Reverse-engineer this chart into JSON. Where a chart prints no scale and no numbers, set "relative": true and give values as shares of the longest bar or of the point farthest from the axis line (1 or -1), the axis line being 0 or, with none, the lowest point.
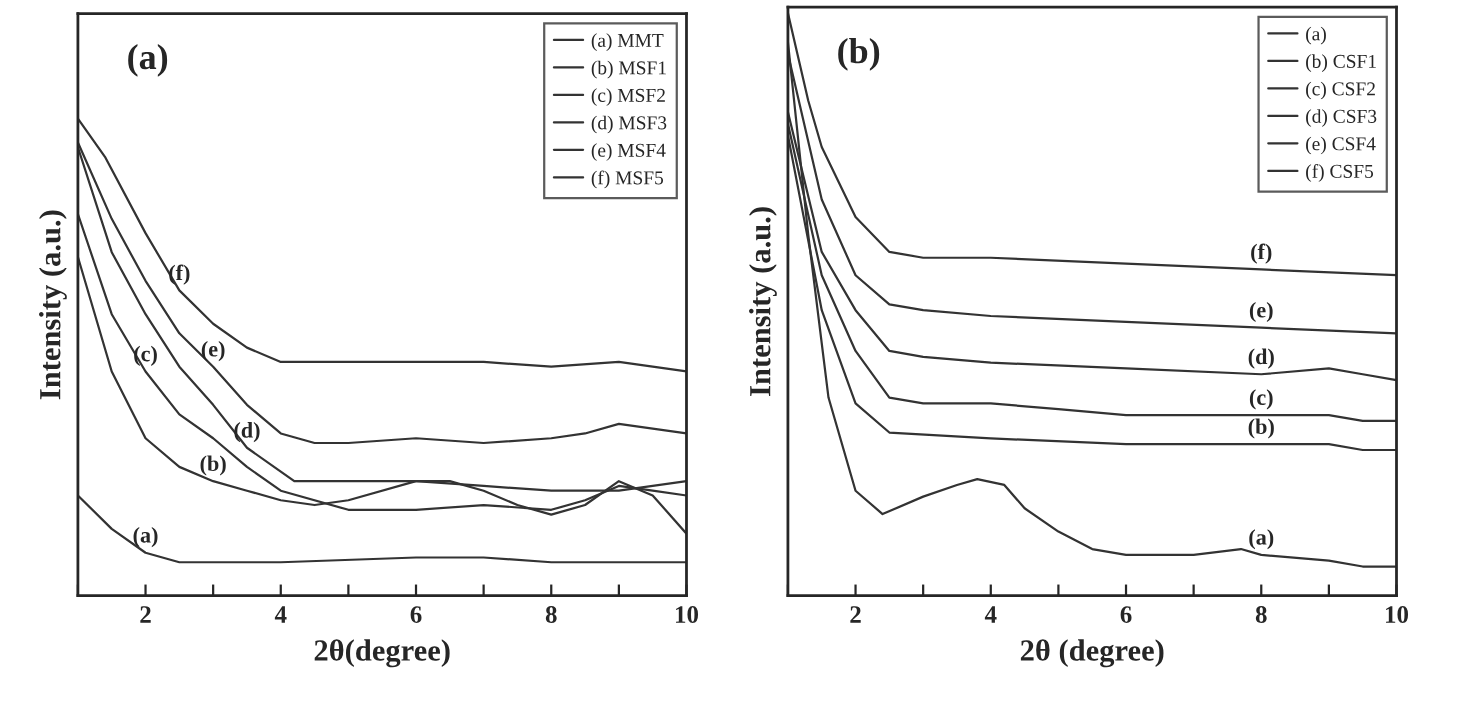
{
  "chart_data": [
    {
      "type": "line",
      "title": "(a)",
      "xlabel": "2θ(degree)",
      "ylabel": "Intensity (a.u.)",
      "relative": true,
      "xlim": [
        1,
        10
      ],
      "xticks": [
        {
          "value": 1,
          "label": null
        },
        2,
        {
          "value": 3,
          "label": null
        },
        4,
        {
          "value": 5,
          "label": null
        },
        6,
        {
          "value": 7,
          "label": null
        },
        8,
        {
          "value": 9,
          "label": null
        },
        10
      ],
      "legend": "top right",
      "grid": false,
      "tick_labels": "x",
      "series": [
        {
          "name": "(a) MMT",
          "color": "#333333",
          "x": [
            1,
            1.5,
            2,
            2.5,
            4,
            6,
            7,
            8,
            10
          ],
          "values": [
            0.21,
            0.14,
            0.09,
            0.07,
            0.07,
            0.08,
            0.08,
            0.07,
            0.07
          ]
        },
        {
          "name": "(b) MSF1",
          "color": "#333333",
          "x": [
            1,
            1.5,
            2,
            2.5,
            3,
            3.5,
            4,
            4.5,
            5,
            6,
            6.5,
            7,
            7.5,
            8,
            8.5,
            9,
            9.5,
            10
          ],
          "values": [
            0.71,
            0.47,
            0.33,
            0.27,
            0.24,
            0.22,
            0.2,
            0.19,
            0.2,
            0.24,
            0.24,
            0.22,
            0.19,
            0.17,
            0.19,
            0.24,
            0.21,
            0.13
          ]
        },
        {
          "name": "(c) MSF2",
          "color": "#333333",
          "x": [
            1,
            1.5,
            2,
            2.5,
            3,
            3.5,
            4,
            5,
            6,
            7,
            8,
            8.5,
            9,
            9.5,
            10
          ],
          "values": [
            0.8,
            0.59,
            0.47,
            0.38,
            0.33,
            0.27,
            0.22,
            0.18,
            0.18,
            0.19,
            0.18,
            0.2,
            0.23,
            0.22,
            0.21
          ]
        },
        {
          "name": "(d) MSF3",
          "color": "#333333",
          "x": [
            1,
            1.5,
            2,
            2.5,
            3,
            3.5,
            4,
            4.2,
            5,
            6,
            7,
            8,
            9,
            10
          ],
          "values": [
            0.94,
            0.72,
            0.59,
            0.48,
            0.4,
            0.31,
            0.26,
            0.24,
            0.24,
            0.24,
            0.23,
            0.22,
            0.22,
            0.24
          ]
        },
        {
          "name": "(e) MSF4",
          "color": "#333333",
          "x": [
            1,
            1.5,
            2,
            2.5,
            3,
            3.5,
            4,
            4.5,
            5,
            6,
            7,
            8,
            8.5,
            9,
            10
          ],
          "values": [
            0.95,
            0.79,
            0.66,
            0.55,
            0.48,
            0.4,
            0.34,
            0.32,
            0.32,
            0.33,
            0.32,
            0.33,
            0.34,
            0.36,
            0.34
          ]
        },
        {
          "name": "(f) MSF5",
          "color": "#333333",
          "x": [
            1,
            1.4,
            2,
            2.5,
            3,
            3.5,
            4,
            5,
            6,
            7,
            8,
            9,
            10
          ],
          "values": [
            1.0,
            0.92,
            0.76,
            0.64,
            0.57,
            0.52,
            0.49,
            0.49,
            0.49,
            0.49,
            0.48,
            0.49,
            0.47
          ]
        }
      ],
      "annotations": [
        {
          "text": "(a)",
          "x": 2,
          "y": 0.09
        },
        {
          "text": "(b)",
          "x": 3,
          "y": 0.24
        },
        {
          "text": "(c)",
          "x": 2,
          "y": 0.47
        },
        {
          "text": "(d)",
          "x": 3.5,
          "y": 0.31
        },
        {
          "text": "(e)",
          "x": 3,
          "y": 0.48
        },
        {
          "text": "(f)",
          "x": 2.5,
          "y": 0.64
        }
      ]
    },
    {
      "type": "line",
      "title": "(b)",
      "xlabel": "2θ (degree)",
      "ylabel": "Intensity (a.u.)",
      "relative": true,
      "xlim": [
        1,
        10
      ],
      "xticks": [
        {
          "value": 1,
          "label": null
        },
        2,
        {
          "value": 3,
          "label": null
        },
        4,
        {
          "value": 5,
          "label": null
        },
        6,
        {
          "value": 7,
          "label": null
        },
        8,
        {
          "value": 9,
          "label": null
        },
        10
      ],
      "legend": "top right",
      "grid": false,
      "tick_labels": "x",
      "series": [
        {
          "name": "(a)",
          "color": "#333333",
          "x": [
            1,
            1.3,
            1.6,
            2,
            2.4,
            3,
            3.5,
            3.8,
            4.2,
            4.5,
            5,
            5.5,
            6,
            7,
            7.7,
            8,
            9,
            9.5,
            10
          ],
          "values": [
            0.95,
            0.62,
            0.34,
            0.18,
            0.14,
            0.17,
            0.19,
            0.2,
            0.19,
            0.15,
            0.11,
            0.08,
            0.07,
            0.07,
            0.08,
            0.07,
            0.06,
            0.05,
            0.05
          ]
        },
        {
          "name": "(b) CSF1",
          "color": "#333333",
          "x": [
            1,
            1.5,
            2,
            2.5,
            4,
            6,
            8,
            9,
            9.5,
            10
          ],
          "values": [
            0.79,
            0.49,
            0.33,
            0.28,
            0.27,
            0.26,
            0.26,
            0.26,
            0.25,
            0.25
          ]
        },
        {
          "name": "(c) CSF2",
          "color": "#333333",
          "x": [
            1,
            1.5,
            2,
            2.5,
            3,
            4,
            5,
            6,
            8,
            9,
            9.5,
            10
          ],
          "values": [
            0.81,
            0.55,
            0.42,
            0.34,
            0.33,
            0.33,
            0.32,
            0.31,
            0.31,
            0.31,
            0.3,
            0.3
          ]
        },
        {
          "name": "(d) CSF3",
          "color": "#333333",
          "x": [
            1,
            1.5,
            2,
            2.5,
            3,
            4,
            6,
            8,
            9,
            9.5,
            10
          ],
          "values": [
            0.83,
            0.59,
            0.49,
            0.42,
            0.41,
            0.4,
            0.39,
            0.38,
            0.39,
            0.38,
            0.37
          ]
        },
        {
          "name": "(e) CSF4",
          "color": "#333333",
          "x": [
            1,
            1.5,
            2,
            2.5,
            3,
            4,
            6,
            8,
            10
          ],
          "values": [
            0.93,
            0.68,
            0.55,
            0.5,
            0.49,
            0.48,
            0.47,
            0.46,
            0.45
          ]
        },
        {
          "name": "(f) CSF5",
          "color": "#333333",
          "x": [
            1,
            1.3,
            1.5,
            2,
            2.5,
            3,
            4,
            6,
            8,
            10
          ],
          "values": [
            1.0,
            0.85,
            0.77,
            0.65,
            0.59,
            0.58,
            0.58,
            0.57,
            0.56,
            0.55
          ]
        }
      ],
      "annotations": [
        {
          "text": "(a)",
          "x": 8,
          "y": 0.07
        },
        {
          "text": "(b)",
          "x": 8,
          "y": 0.26
        },
        {
          "text": "(c)",
          "x": 8,
          "y": 0.31
        },
        {
          "text": "(d)",
          "x": 8,
          "y": 0.38
        },
        {
          "text": "(e)",
          "x": 8,
          "y": 0.46
        },
        {
          "text": "(f)",
          "x": 8,
          "y": 0.56
        }
      ]
    }
  ]
}
